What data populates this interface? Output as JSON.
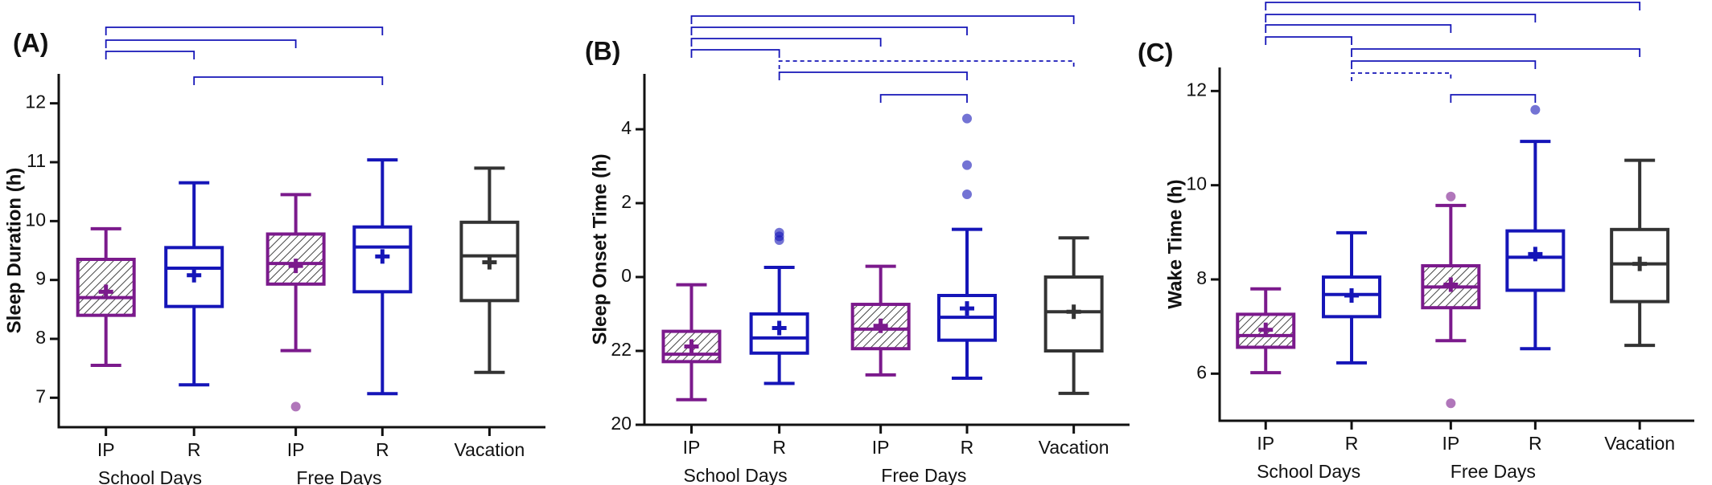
{
  "chart_data": [
    {
      "type": "box",
      "label": "(A)",
      "ylabel": "Sleep Duration (h)",
      "categories": [
        "IP",
        "R",
        "IP",
        "R",
        "Vacation"
      ],
      "groups": [
        "School Days",
        "Free Days"
      ],
      "colors": [
        "#7b1a8c",
        "#1515b8",
        "#7b1a8c",
        "#1515b8",
        "#333333"
      ],
      "hatched": [
        true,
        false,
        true,
        false,
        false
      ],
      "ylim": [
        6.5,
        12.5
      ],
      "yticks": [
        7,
        8,
        9,
        10,
        11,
        12
      ],
      "boxes": [
        {
          "min": 7.55,
          "q1": 8.4,
          "median": 8.7,
          "q3": 9.35,
          "max": 9.87,
          "mean": 8.8,
          "outliers": []
        },
        {
          "min": 7.22,
          "q1": 8.55,
          "median": 9.2,
          "q3": 9.55,
          "max": 10.65,
          "mean": 9.08,
          "outliers": []
        },
        {
          "min": 7.8,
          "q1": 8.93,
          "median": 9.28,
          "q3": 9.78,
          "max": 10.45,
          "mean": 9.24,
          "outliers": [
            6.85
          ]
        },
        {
          "min": 7.07,
          "q1": 8.8,
          "median": 9.56,
          "q3": 9.9,
          "max": 11.04,
          "mean": 9.4,
          "outliers": []
        },
        {
          "min": 7.43,
          "q1": 8.65,
          "median": 9.41,
          "q3": 9.98,
          "max": 10.9,
          "mean": 9.3,
          "outliers": []
        }
      ]
    },
    {
      "type": "box",
      "label": "(B)",
      "ylabel": "Sleep Onset Time (h)",
      "categories": [
        "IP",
        "R",
        "IP",
        "R",
        "Vacation"
      ],
      "groups": [
        "School Days",
        "Free Days"
      ],
      "colors": [
        "#7b1a8c",
        "#1515b8",
        "#7b1a8c",
        "#1515b8",
        "#333333"
      ],
      "hatched": [
        true,
        false,
        true,
        false,
        false
      ],
      "ylim": [
        -4,
        5.5
      ],
      "yticks": [
        {
          "value": -4,
          "label": "20"
        },
        {
          "value": -2,
          "label": "22"
        },
        0,
        2,
        4
      ],
      "boxes": [
        {
          "min": -3.32,
          "q1": -2.29,
          "median": -2.09,
          "q3": -1.47,
          "max": -0.21,
          "mean": -1.88,
          "outliers": []
        },
        {
          "min": -2.88,
          "q1": -2.06,
          "median": -1.65,
          "q3": -1.0,
          "max": 0.26,
          "mean": -1.38,
          "outliers": [
            1.0,
            1.1,
            1.2
          ]
        },
        {
          "min": -2.65,
          "q1": -1.94,
          "median": -1.41,
          "q3": -0.74,
          "max": 0.29,
          "mean": -1.32,
          "outliers": []
        },
        {
          "min": -2.74,
          "q1": -1.71,
          "median": -1.09,
          "q3": -0.5,
          "max": 1.29,
          "mean": -0.85,
          "outliers": [
            2.24,
            3.03,
            4.29
          ]
        },
        {
          "min": -3.15,
          "q1": -2.0,
          "median": -0.94,
          "q3": 0,
          "max": 1.06,
          "mean": -0.94,
          "outliers": []
        }
      ]
    },
    {
      "type": "box",
      "label": "(C)",
      "ylabel": "Wake Time (h)",
      "categories": [
        "IP",
        "R",
        "IP",
        "R",
        "Vacation"
      ],
      "groups": [
        "School Days",
        "Free Days"
      ],
      "colors": [
        "#7b1a8c",
        "#1515b8",
        "#7b1a8c",
        "#1515b8",
        "#333333"
      ],
      "hatched": [
        true,
        false,
        true,
        false,
        false
      ],
      "ylim": [
        5,
        12.5
      ],
      "yticks": [
        6,
        8,
        10,
        12
      ],
      "boxes": [
        {
          "min": 6.02,
          "q1": 6.56,
          "median": 6.81,
          "q3": 7.26,
          "max": 7.8,
          "mean": 6.93,
          "outliers": []
        },
        {
          "min": 6.23,
          "q1": 7.21,
          "median": 7.68,
          "q3": 8.05,
          "max": 8.99,
          "mean": 7.66,
          "outliers": []
        },
        {
          "min": 6.7,
          "q1": 7.4,
          "median": 7.84,
          "q3": 8.29,
          "max": 9.57,
          "mean": 7.89,
          "outliers": [
            5.37,
            9.76
          ]
        },
        {
          "min": 6.53,
          "q1": 7.77,
          "median": 8.47,
          "q3": 9.03,
          "max": 10.93,
          "mean": 8.54,
          "outliers": [
            11.6
          ]
        },
        {
          "min": 6.6,
          "q1": 7.53,
          "median": 8.33,
          "q3": 9.06,
          "max": 10.53,
          "mean": 8.33,
          "outliers": []
        }
      ]
    }
  ]
}
